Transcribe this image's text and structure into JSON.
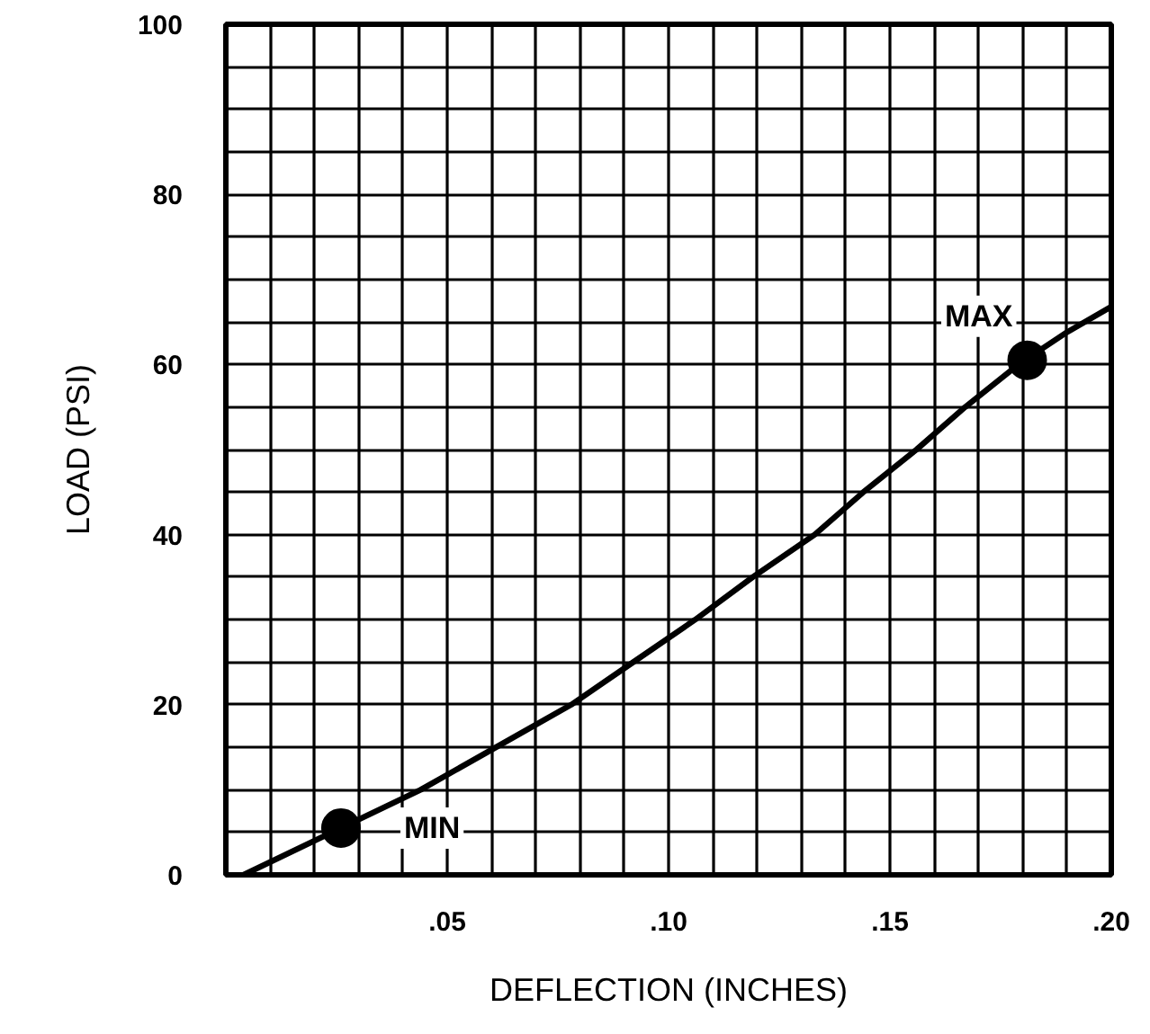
{
  "chart_data": {
    "type": "line",
    "xlabel": "DEFLECTION (INCHES)",
    "ylabel": "LOAD (PSI)",
    "xlim": [
      0,
      0.2
    ],
    "ylim": [
      0,
      100
    ],
    "xticks": [
      {
        "value": 0,
        "label": null
      },
      {
        "value": 0.01,
        "label": null
      },
      {
        "value": 0.02,
        "label": null
      },
      {
        "value": 0.03,
        "label": null
      },
      {
        "value": 0.04,
        "label": null
      },
      {
        "value": 0.05,
        "label": ".05"
      },
      {
        "value": 0.06,
        "label": null
      },
      {
        "value": 0.07,
        "label": null
      },
      {
        "value": 0.08,
        "label": null
      },
      {
        "value": 0.09,
        "label": null
      },
      {
        "value": 0.1,
        "label": ".10"
      },
      {
        "value": 0.11,
        "label": null
      },
      {
        "value": 0.12,
        "label": null
      },
      {
        "value": 0.13,
        "label": null
      },
      {
        "value": 0.14,
        "label": null
      },
      {
        "value": 0.15,
        "label": ".15"
      },
      {
        "value": 0.16,
        "label": null
      },
      {
        "value": 0.17,
        "label": null
      },
      {
        "value": 0.18,
        "label": null
      },
      {
        "value": 0.19,
        "label": null
      },
      {
        "value": 0.2,
        "label": ".20"
      }
    ],
    "yticks": [
      0,
      {
        "value": 5,
        "label": null
      },
      {
        "value": 10,
        "label": null
      },
      {
        "value": 15,
        "label": null
      },
      20,
      {
        "value": 25,
        "label": null
      },
      {
        "value": 30,
        "label": null
      },
      {
        "value": 35,
        "label": null
      },
      40,
      {
        "value": 45,
        "label": null
      },
      {
        "value": 50,
        "label": null
      },
      {
        "value": 55,
        "label": null
      },
      60,
      {
        "value": 65,
        "label": null
      },
      {
        "value": 70,
        "label": null
      },
      {
        "value": 75,
        "label": null
      },
      80,
      {
        "value": 85,
        "label": null
      },
      {
        "value": 90,
        "label": null
      },
      {
        "value": 95,
        "label": null
      },
      100
    ],
    "grid": true,
    "series": [
      {
        "color": "#000000",
        "line_style": "solid",
        "x": [
          0.004,
          0.024,
          0.044,
          0.061,
          0.078,
          0.092,
          0.106,
          0.119,
          0.133,
          0.144,
          0.156,
          0.167,
          0.179,
          0.19,
          0.2
        ],
        "values": [
          0,
          5,
          10,
          15,
          20,
          25,
          30,
          35,
          40,
          45,
          50,
          55,
          60,
          63.8,
          66.8
        ]
      },
      {
        "type": "scatter",
        "color": "#000000",
        "marker": "circle",
        "x": [
          0.026,
          0.181
        ],
        "values": [
          5.5,
          60.5
        ]
      }
    ],
    "annotations": [
      {
        "text": "MIN",
        "x": 0.026,
        "y": 5.5
      },
      {
        "text": "MAX",
        "x": 0.181,
        "y": 60.5
      }
    ]
  }
}
